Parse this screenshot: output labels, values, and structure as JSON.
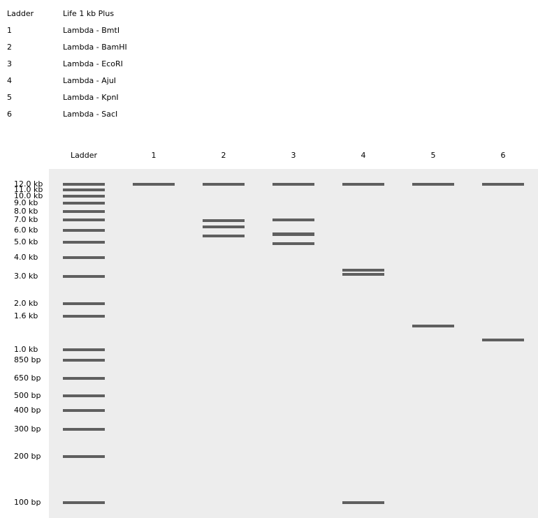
{
  "legend": [
    {
      "id": "Ladder",
      "desc": "Life 1 kb Plus"
    },
    {
      "id": "1",
      "desc": "Lambda - BmtI"
    },
    {
      "id": "2",
      "desc": "Lambda - BamHI"
    },
    {
      "id": "3",
      "desc": "Lambda - EcoRI"
    },
    {
      "id": "4",
      "desc": "Lambda - AjuI"
    },
    {
      "id": "5",
      "desc": "Lambda - KpnI"
    },
    {
      "id": "6",
      "desc": "Lambda - SacI"
    }
  ],
  "lanes": [
    "Ladder",
    "1",
    "2",
    "3",
    "4",
    "5",
    "6"
  ],
  "size_labels": [
    "12.0 kb",
    "11.0 kb",
    "10.0 kb",
    "9.0 kb",
    "8.0 kb",
    "7.0 kb",
    "6.0 kb",
    "5.0 kb",
    "4.0 kb",
    "3.0 kb",
    "2.0 kb",
    "1.6 kb",
    "1.0 kb",
    "850 bp",
    "650 bp",
    "500 bp",
    "400 bp",
    "300 bp",
    "200 bp",
    "100 bp"
  ],
  "ladder_bp": [
    12000,
    11000,
    10000,
    9000,
    8000,
    7000,
    6000,
    5000,
    4000,
    3000,
    2000,
    1600,
    1000,
    850,
    650,
    500,
    400,
    300,
    200,
    100
  ],
  "lane_bands_bp": [
    [
      12000,
      11000,
      10000,
      9000,
      8000,
      7000,
      6000,
      5000,
      4000,
      3000,
      2000,
      1600,
      1000,
      850,
      650,
      500,
      400,
      300,
      200,
      100
    ],
    [
      12000
    ],
    [
      12000,
      6900,
      6300,
      5500
    ],
    [
      12000,
      7000,
      5700,
      5600,
      4900
    ],
    [
      12000,
      3300,
      3100,
      100
    ],
    [
      12000,
      1400
    ],
    [
      12000,
      1150
    ]
  ]
}
